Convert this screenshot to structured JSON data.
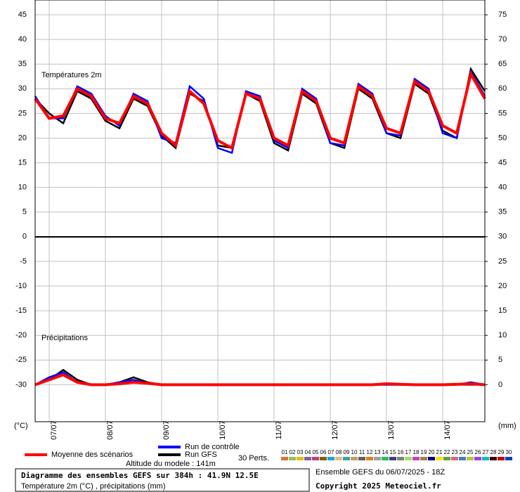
{
  "chart_data": {
    "type": "line",
    "annotations": {
      "temperature": "Températures 2m",
      "precipitation": "Précipitations",
      "y_unit": "(°C)",
      "y2_unit": "(mm)",
      "altitude": "Altitude du modele : 141m",
      "perturbations_label": "30 Perts."
    },
    "title": "Diagramme des ensembles GEFS sur 384h : 41.9N 12.5E",
    "subtitle": "Température 2m (°C) , précipitations (mm)",
    "run_info": "Ensemble GEFS du 06/07/2025 - 18Z",
    "copyright": "Copyright 2025 Meteociel.fr",
    "x": [
      0,
      6,
      12,
      18,
      24,
      30,
      36,
      42,
      48,
      54,
      60,
      66,
      72,
      78,
      84,
      90,
      96,
      102,
      108,
      114,
      120,
      126,
      132,
      138,
      144,
      150,
      156,
      162,
      168,
      174,
      180,
      186,
      192
    ],
    "xlim": [
      0,
      192
    ],
    "xticks": [
      {
        "value": 6,
        "label": "07/07"
      },
      {
        "value": 30,
        "label": "08/07"
      },
      {
        "value": 54,
        "label": "09/07"
      },
      {
        "value": 78,
        "label": "10/07"
      },
      {
        "value": 102,
        "label": "11/07"
      },
      {
        "value": 126,
        "label": "12/07"
      },
      {
        "value": 150,
        "label": "13/07"
      },
      {
        "value": 174,
        "label": "14/07"
      }
    ],
    "ylim": [
      -37.5,
      48
    ],
    "yticks": [
      45,
      40,
      35,
      30,
      25,
      20,
      15,
      10,
      5,
      0,
      -5,
      -10,
      -15,
      -20,
      -25,
      -30
    ],
    "y2lim": [
      -7.5,
      78
    ],
    "y2ticks": [
      75,
      70,
      65,
      60,
      55,
      50,
      45,
      40,
      35,
      30,
      25,
      20,
      15,
      10,
      5,
      0
    ],
    "grid": true,
    "series": [
      {
        "name": "Moyenne des scénarios",
        "color": "#ff0000",
        "values": [
          28,
          24,
          24.5,
          30,
          28.5,
          24,
          23,
          28.5,
          27,
          21,
          18.5,
          29.5,
          27,
          19.5,
          18,
          29,
          28,
          20,
          18.5,
          29.5,
          27.5,
          20,
          19,
          30.5,
          28.5,
          22,
          21,
          31.5,
          29.5,
          22.5,
          21,
          33,
          28
        ],
        "precip": {
          "axis": "y2",
          "values": [
            0,
            1,
            2,
            0.5,
            0,
            0,
            0.2,
            0.5,
            0.3,
            0,
            0,
            0,
            0,
            0,
            0,
            0,
            0,
            0,
            0,
            0,
            0,
            0,
            0,
            0,
            0,
            0.2,
            0.1,
            0,
            0,
            0,
            0.1,
            0.2,
            0
          ]
        }
      },
      {
        "name": "Run de contrôle",
        "color": "#0000ff",
        "values": [
          28.5,
          24,
          24,
          30.5,
          29,
          24.5,
          22.5,
          29,
          27.5,
          20,
          19,
          30.5,
          28,
          18,
          17,
          29.5,
          28.5,
          19.5,
          18,
          30,
          28,
          19,
          18.5,
          31,
          29,
          21,
          20.5,
          32,
          30,
          21,
          20,
          33.5,
          28.5
        ],
        "precip": {
          "axis": "y2",
          "values": [
            0,
            1.5,
            2.5,
            0.5,
            0,
            0,
            0.5,
            1,
            0.3,
            0,
            0,
            0,
            0,
            0,
            0,
            0,
            0,
            0,
            0,
            0,
            0,
            0,
            0,
            0,
            0,
            0,
            0,
            0,
            0,
            0,
            0,
            0.5,
            0
          ]
        }
      },
      {
        "name": "Run GFS",
        "color": "#000000",
        "values": [
          28,
          25,
          23,
          29.5,
          28,
          23.5,
          22,
          28,
          26.5,
          20.5,
          18,
          29,
          27.5,
          18.5,
          18,
          29,
          27.5,
          19,
          17.5,
          29,
          27,
          19,
          18,
          30,
          28,
          21,
          20,
          31,
          29,
          21.5,
          20,
          34,
          29.5
        ],
        "precip": {
          "axis": "y2",
          "values": [
            0,
            1,
            3,
            1,
            0,
            0,
            0.5,
            1.5,
            0.5,
            0,
            0,
            0,
            0,
            0,
            0,
            0,
            0,
            0,
            0,
            0,
            0,
            0,
            0,
            0,
            0,
            0,
            0,
            0,
            0,
            0,
            0,
            0,
            0
          ]
        }
      }
    ],
    "perturbations": [
      {
        "name": "01",
        "color": "#e07030"
      },
      {
        "name": "02",
        "color": "#90c060"
      },
      {
        "name": "03",
        "color": "#e0c000"
      },
      {
        "name": "04",
        "color": "#8060a0"
      },
      {
        "name": "05",
        "color": "#c04080"
      },
      {
        "name": "06",
        "color": "#806000"
      },
      {
        "name": "07",
        "color": "#20a0e0"
      },
      {
        "name": "08",
        "color": "#e0c080"
      },
      {
        "name": "09",
        "color": "#40a0a0"
      },
      {
        "name": "10",
        "color": "#c0a060"
      },
      {
        "name": "11",
        "color": "#606060"
      },
      {
        "name": "12",
        "color": "#e08020"
      },
      {
        "name": "13",
        "color": "#a0a0a0"
      },
      {
        "name": "14",
        "color": "#20c060"
      },
      {
        "name": "15",
        "color": "#404080"
      },
      {
        "name": "16",
        "color": "#808080"
      },
      {
        "name": "17",
        "color": "#a0e060"
      },
      {
        "name": "18",
        "color": "#c040c0"
      },
      {
        "name": "19",
        "color": "#a08040"
      },
      {
        "name": "20",
        "color": "#000080"
      },
      {
        "name": "21",
        "color": "#ffe000"
      },
      {
        "name": "22",
        "color": "#60a040"
      },
      {
        "name": "23",
        "color": "#e06080"
      },
      {
        "name": "24",
        "color": "#4080c0"
      },
      {
        "name": "25",
        "color": "#c0c040"
      },
      {
        "name": "26",
        "color": "#a040e0"
      },
      {
        "name": "27",
        "color": "#00c0c0"
      },
      {
        "name": "28",
        "color": "#400000"
      },
      {
        "name": "29",
        "color": "#c00000"
      },
      {
        "name": "30",
        "color": "#0040c0"
      }
    ]
  }
}
